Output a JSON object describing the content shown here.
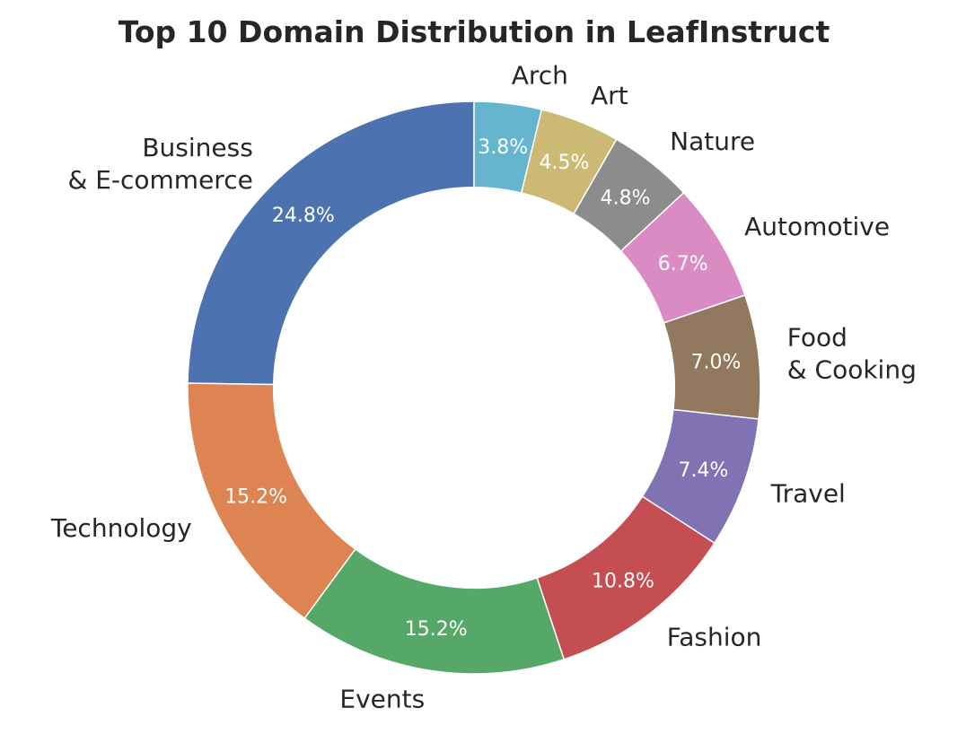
{
  "chart_data": {
    "type": "pie",
    "variant": "donut",
    "title": "Top 10 Domain Distribution in LeafInstruct",
    "start_angle_deg": 90,
    "direction": "counterclockwise",
    "hole_ratio": 0.7,
    "slices": [
      {
        "label": "Business\n& E-commerce",
        "value": 24.8,
        "pct_label": "24.8%",
        "color": "#4c72b0"
      },
      {
        "label": "Technology",
        "value": 15.2,
        "pct_label": "15.2%",
        "color": "#dd8452"
      },
      {
        "label": "Events",
        "value": 15.2,
        "pct_label": "15.2%",
        "color": "#55a868"
      },
      {
        "label": "Fashion",
        "value": 10.8,
        "pct_label": "10.8%",
        "color": "#c44e52"
      },
      {
        "label": "Travel",
        "value": 7.4,
        "pct_label": "7.4%",
        "color": "#8172b3"
      },
      {
        "label": "Food\n& Cooking",
        "value": 7.0,
        "pct_label": "7.0%",
        "color": "#937860"
      },
      {
        "label": "Automotive",
        "value": 6.7,
        "pct_label": "6.7%",
        "color": "#da8bc3"
      },
      {
        "label": "Nature",
        "value": 4.8,
        "pct_label": "4.8%",
        "color": "#8c8c8c"
      },
      {
        "label": "Art",
        "value": 4.5,
        "pct_label": "4.5%",
        "color": "#ccb974"
      },
      {
        "label": "Arch",
        "value": 3.8,
        "pct_label": "3.8%",
        "color": "#64b5cd"
      }
    ]
  }
}
